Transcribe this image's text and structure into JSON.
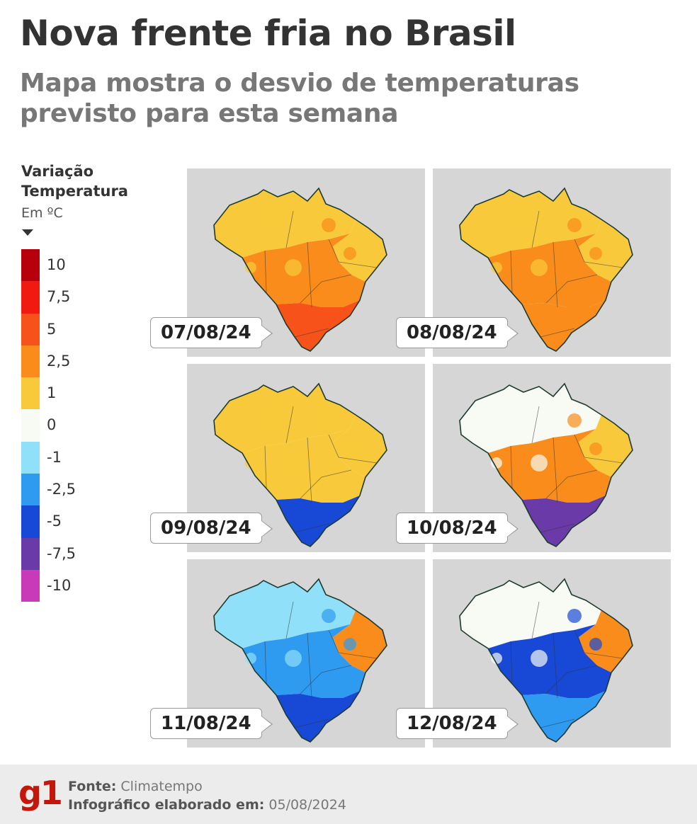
{
  "header": {
    "title": "Nova frente fria no Brasil",
    "subtitle": "Mapa mostra o desvio de temperaturas previsto para esta semana"
  },
  "legend": {
    "title_line1": "Variação",
    "title_line2": "Temperatura",
    "unit": "Em ºC",
    "scale": [
      {
        "label": "10",
        "color": "#b8000c"
      },
      {
        "label": "7,5",
        "color": "#f01a10"
      },
      {
        "label": "5",
        "color": "#f7521a"
      },
      {
        "label": "2,5",
        "color": "#f98c1a"
      },
      {
        "label": "1",
        "color": "#f8ca3b"
      },
      {
        "label": "0",
        "color": "#f7fbf4"
      },
      {
        "label": "-1",
        "color": "#8fe0f8"
      },
      {
        "label": "-2,5",
        "color": "#2e9bf0"
      },
      {
        "label": "-5",
        "color": "#1848d6"
      },
      {
        "label": "-7,5",
        "color": "#6a3aa8"
      },
      {
        "label": "-10",
        "color": "#c93ab8"
      }
    ]
  },
  "maps": [
    {
      "date": "07/08/24",
      "fill": {
        "north": "#f8ca3b",
        "center": "#f98c1a",
        "south": "#f7521a",
        "ne": "#f8ca3b"
      }
    },
    {
      "date": "08/08/24",
      "fill": {
        "north": "#f8ca3b",
        "center": "#f98c1a",
        "south": "#f98c1a",
        "ne": "#f8ca3b"
      }
    },
    {
      "date": "09/08/24",
      "fill": {
        "north": "#f8ca3b",
        "center": "#f8ca3b",
        "south": "#1848d6",
        "ne": "#f8ca3b"
      }
    },
    {
      "date": "10/08/24",
      "fill": {
        "north": "#f7fbf4",
        "center": "#f98c1a",
        "south": "#6a3aa8",
        "ne": "#f8ca3b"
      }
    },
    {
      "date": "11/08/24",
      "fill": {
        "north": "#8fe0f8",
        "center": "#2e9bf0",
        "south": "#1848d6",
        "ne": "#f98c1a"
      }
    },
    {
      "date": "12/08/24",
      "fill": {
        "north": "#f7fbf4",
        "center": "#1848d6",
        "south": "#2e9bf0",
        "ne": "#f98c1a"
      }
    }
  ],
  "footer": {
    "logo": "g1",
    "source_label": "Fonte:",
    "source_value": "Climatempo",
    "made_label": "Infográfico elaborado em:",
    "made_value": "05/08/2024"
  }
}
